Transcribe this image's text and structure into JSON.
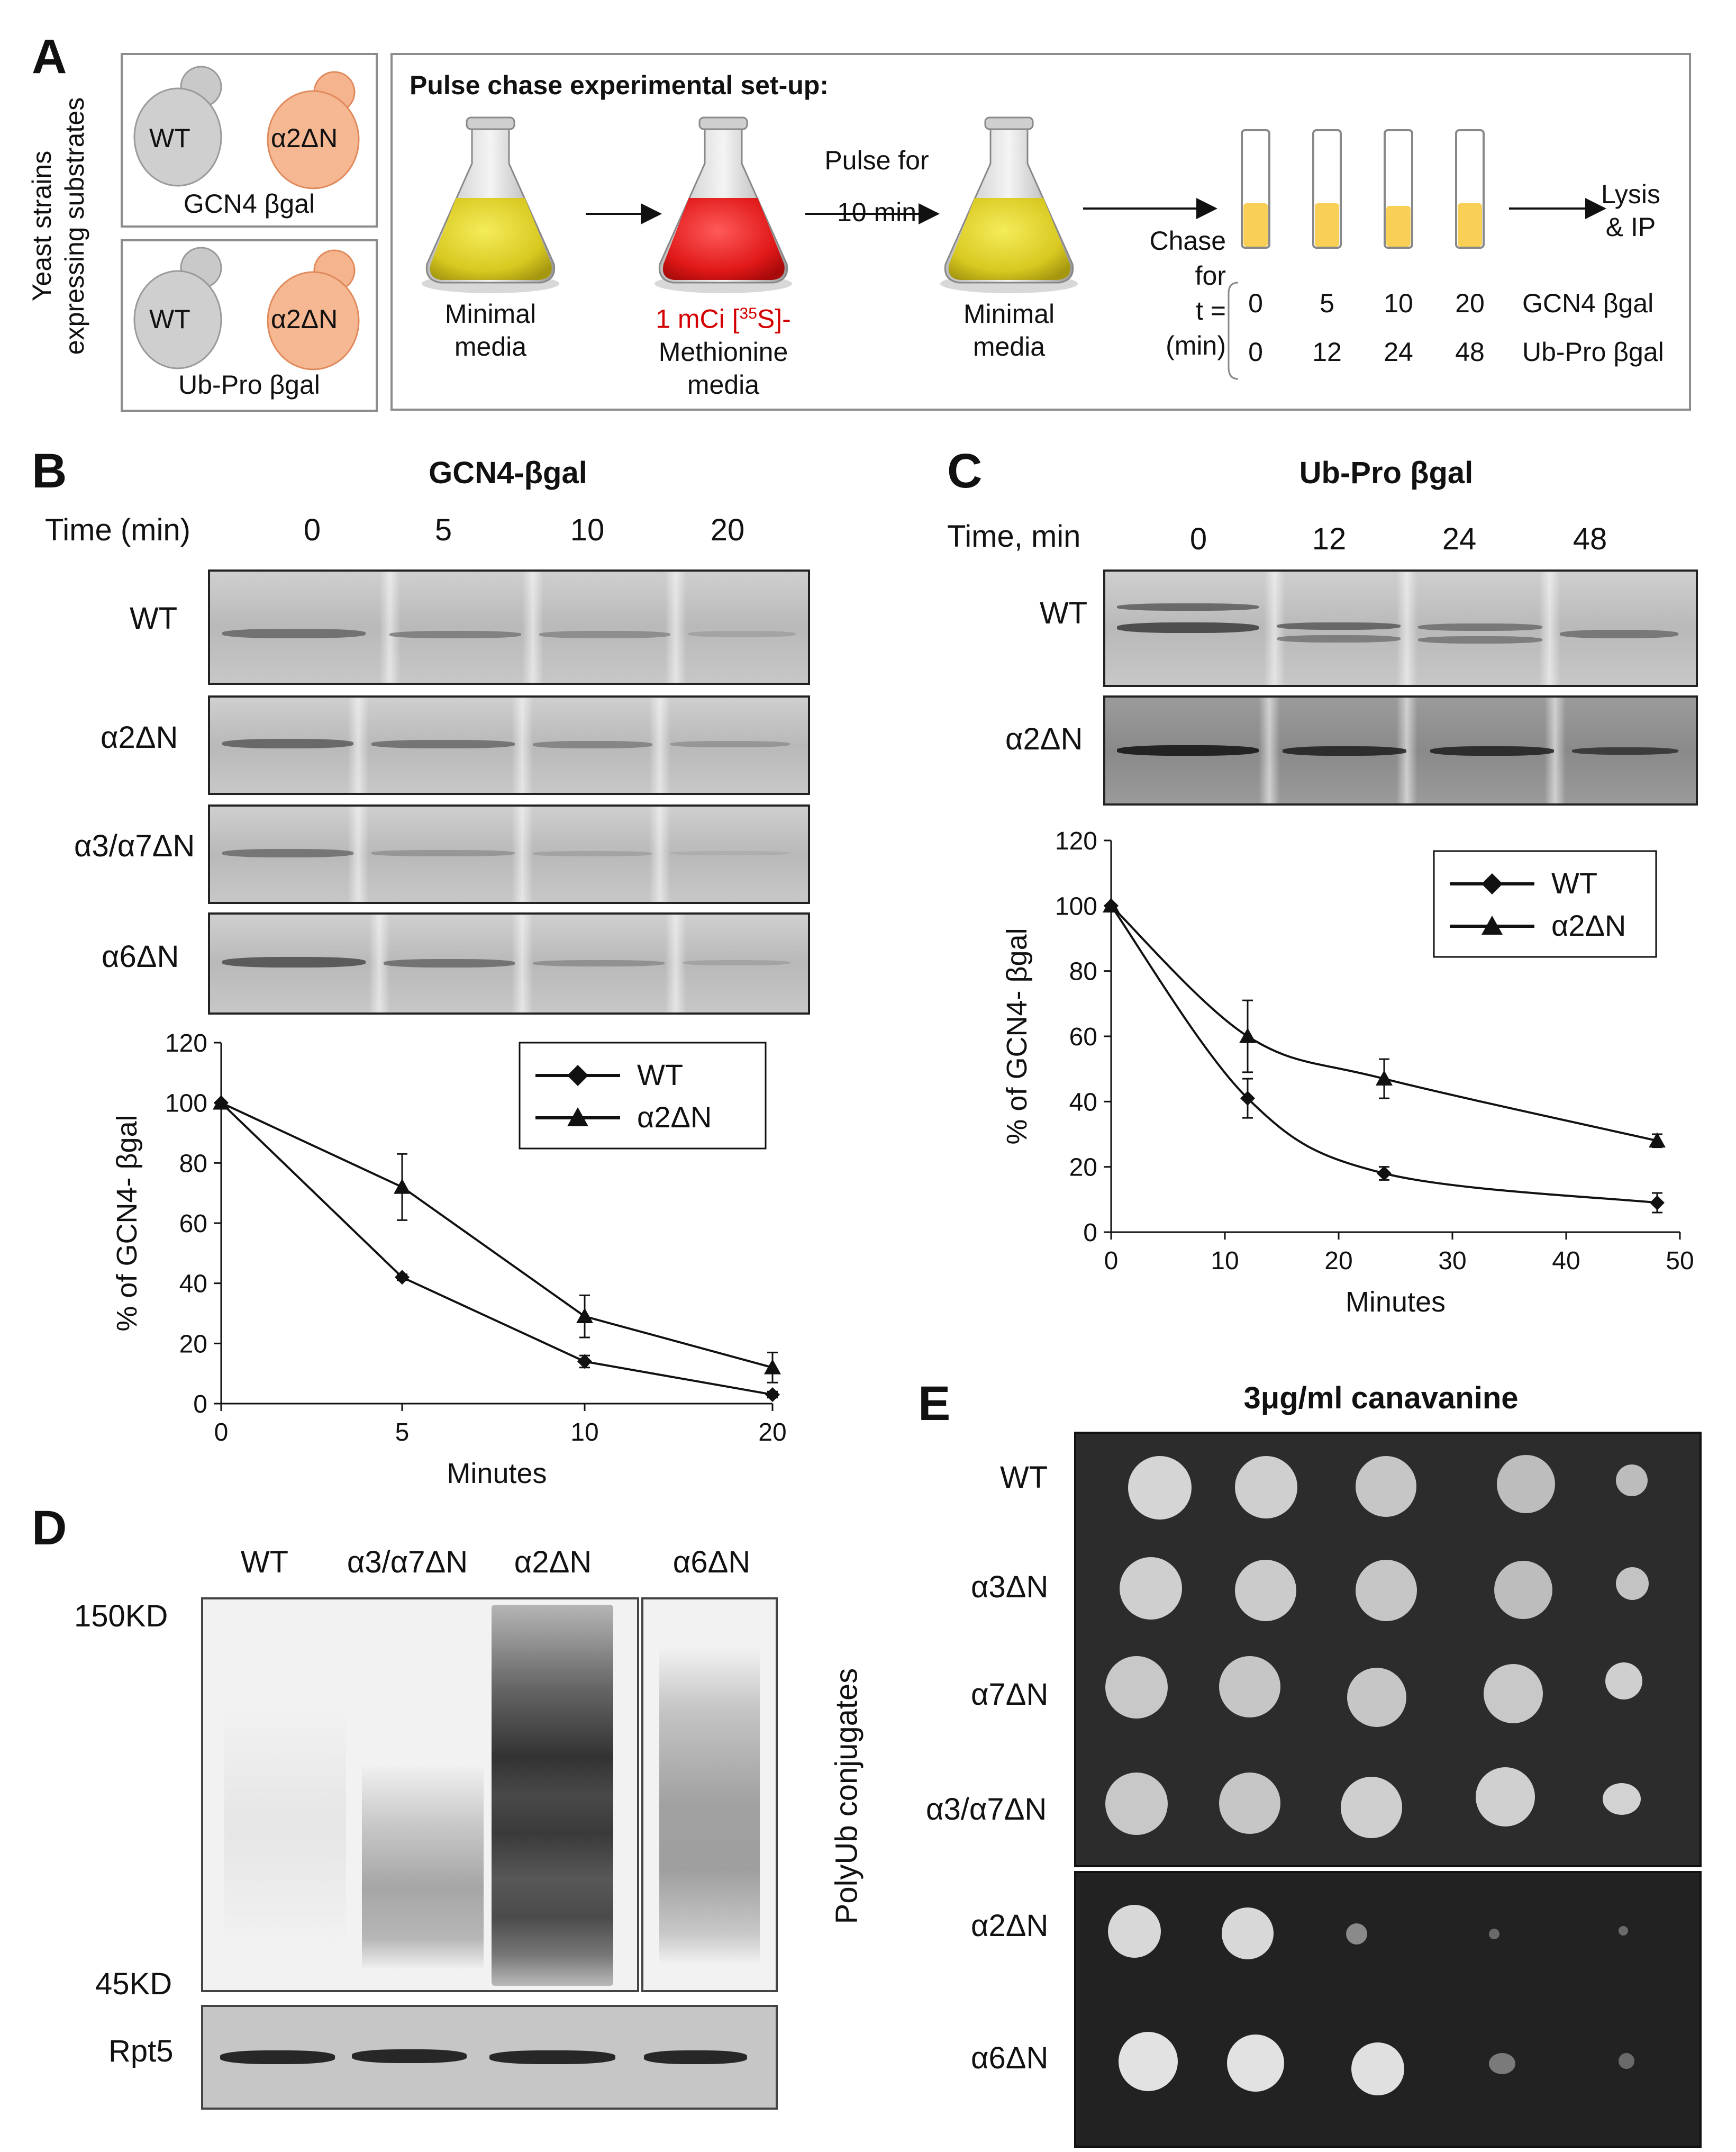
{
  "panelA": {
    "letter": "A",
    "yeast_label_line1": "Yeast strains",
    "yeast_label_line2": "expressing substrates",
    "box1": {
      "cell_wt": "WT",
      "cell_mut": "α2ΔN",
      "substrate": "GCN4 βgal"
    },
    "box2": {
      "cell_wt": "WT",
      "cell_mut": "α2ΔN",
      "substrate": "Ub-Pro βgal"
    },
    "setup_title": "Pulse chase experimental set-up:",
    "flask1": {
      "line1": "Minimal",
      "line2": "media"
    },
    "flask2": {
      "line1": "1 mCi [",
      "sup": "35",
      "line1b": "S]-",
      "line2": "Methionine",
      "line3": "media"
    },
    "pulse": {
      "line1": "Pulse for",
      "line2": "10 min"
    },
    "flask3": {
      "line1": "Minimal",
      "line2": "media"
    },
    "chase": {
      "line1": "Chase",
      "line2": "for",
      "line3": "t =",
      "line4": "(min)"
    },
    "times_gcn4": [
      "0",
      "5",
      "10",
      "20"
    ],
    "times_ubpro": [
      "0",
      "12",
      "24",
      "48"
    ],
    "row_gcn4": "GCN4 βgal",
    "row_ubpro": "Ub-Pro βgal",
    "lysis": {
      "line1": "Lysis",
      "line2": "& IP"
    }
  },
  "panelB": {
    "letter": "B",
    "title": "GCN4-βgal",
    "time_label": "Time (min)",
    "times": [
      "0",
      "5",
      "10",
      "20"
    ],
    "rows": [
      "WT",
      "α2ΔN",
      "α3/α7ΔN",
      "α6ΔN"
    ]
  },
  "panelC": {
    "letter": "C",
    "title": "Ub-Pro βgal",
    "time_label": "Time, min",
    "times": [
      "0",
      "12",
      "24",
      "48"
    ],
    "rows": [
      "WT",
      "α2ΔN"
    ]
  },
  "panelD": {
    "letter": "D",
    "lanes": [
      "WT",
      "α3/α7ΔN",
      "α2ΔN",
      "α6ΔN"
    ],
    "marker_top": "150KD",
    "marker_bottom": "45KD",
    "side_label": "PolyUb conjugates",
    "loading_label": "Rpt5"
  },
  "panelE": {
    "letter": "E",
    "title": "3μg/ml canavanine",
    "rows": [
      "WT",
      "α3ΔN",
      "α7ΔN",
      "α3/α7ΔN",
      "α2ΔN",
      "α6ΔN"
    ]
  },
  "chart_data": [
    {
      "type": "line",
      "panel": "B",
      "ylabel": "% of GCN4- βgal",
      "xlabel": "Minutes",
      "x_ticks": [
        "0",
        "5",
        "10",
        "20"
      ],
      "y_ticks": [
        "0",
        "20",
        "40",
        "60",
        "80",
        "100",
        "120"
      ],
      "ylim": [
        0,
        120
      ],
      "x": [
        0,
        5,
        10,
        20
      ],
      "series": [
        {
          "name": "WT",
          "marker": "diamond",
          "values": [
            100,
            42,
            14,
            3
          ],
          "errors": [
            0,
            1,
            2,
            1
          ]
        },
        {
          "name": "α2ΔN",
          "marker": "triangle",
          "values": [
            100,
            72,
            29,
            12
          ],
          "errors": [
            0,
            11,
            7,
            5
          ]
        }
      ],
      "legend": "top-right"
    },
    {
      "type": "line",
      "panel": "C",
      "ylabel": "% of GCN4- βgal",
      "xlabel": "Minutes",
      "x_ticks": [
        "0",
        "10",
        "20",
        "30",
        "40",
        "50"
      ],
      "y_ticks": [
        "0",
        "20",
        "40",
        "60",
        "80",
        "100",
        "120"
      ],
      "xlim": [
        0,
        50
      ],
      "ylim": [
        0,
        120
      ],
      "series": [
        {
          "name": "WT",
          "marker": "diamond",
          "x": [
            0,
            12,
            24,
            48
          ],
          "values": [
            100,
            41,
            18,
            9
          ],
          "errors": [
            0,
            6,
            2,
            3
          ]
        },
        {
          "name": "α2ΔN",
          "marker": "triangle",
          "x": [
            0,
            12,
            24,
            48
          ],
          "values": [
            100,
            60,
            47,
            28
          ],
          "errors": [
            0,
            11,
            6,
            2
          ]
        }
      ],
      "legend": "top-right"
    }
  ]
}
